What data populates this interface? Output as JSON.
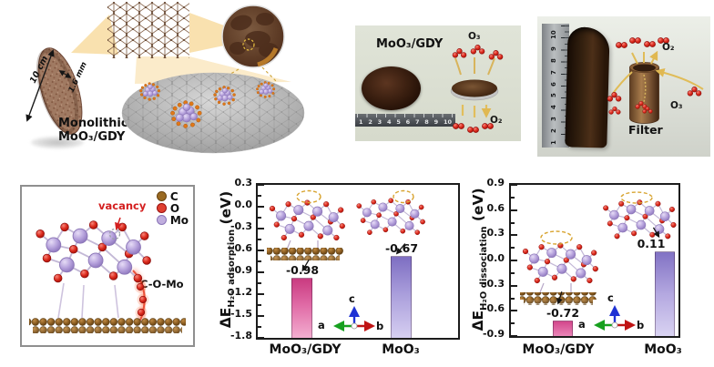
{
  "top_left": {
    "caption_line1": "Monolithic",
    "caption_line2": "MoO₃/GDY",
    "diameter_label": "10 cm",
    "thickness_label": "1.6 mm"
  },
  "top_middle": {
    "title": "MoO₃/GDY",
    "ozone_label": "O₃",
    "oxygen_label": "O₂",
    "ruler_numbers": [
      "1",
      "2",
      "3",
      "4",
      "5",
      "6",
      "7",
      "8",
      "9",
      "10"
    ]
  },
  "top_right": {
    "caption": "Filter",
    "oxygen_label": "O₂",
    "ozone_label": "O₃",
    "ruler_numbers": [
      "1",
      "2",
      "3",
      "4",
      "5",
      "6",
      "7",
      "8",
      "9",
      "10"
    ]
  },
  "bottom_left": {
    "vacancy_label": "vacancy",
    "bond_label": "C-O-Mo",
    "legend": [
      {
        "label": "C",
        "color": "#9a6a22",
        "ring": "#6a4410"
      },
      {
        "label": "O",
        "color": "#e04030",
        "ring": "#991010"
      },
      {
        "label": "Mo",
        "color": "#c0aede",
        "ring": "#8a74b8"
      }
    ]
  },
  "chart_data": [
    {
      "type": "bar",
      "ylabel": "ΔE_H₂O adsorption (eV)",
      "ylabel_parts": {
        "prefix": "ΔE",
        "sub": "H₂O adsorption",
        "unit": " (eV)"
      },
      "categories": [
        "MoO₃/GDY",
        "MoO₃"
      ],
      "values": [
        -0.98,
        -0.67
      ],
      "bar_labels": [
        "-0.98",
        "-0.67"
      ],
      "bar_colors": [
        "#d23b82",
        "#8b7cc8"
      ],
      "ylim": [
        -1.8,
        0.3
      ],
      "yticks": [
        0.3,
        0.0,
        -0.3,
        -0.6,
        -0.9,
        -1.2,
        -1.5,
        -1.8
      ],
      "grid": false,
      "legend_position": "none",
      "axes_triad": [
        "a",
        "b",
        "c"
      ]
    },
    {
      "type": "bar",
      "ylabel": "ΔE_H₂O dissociation (eV)",
      "ylabel_parts": {
        "prefix": "ΔE",
        "sub": "H₂O dissociation",
        "unit": " (eV)"
      },
      "categories": [
        "MoO₃/GDY",
        "MoO₃"
      ],
      "values": [
        -0.72,
        0.11
      ],
      "bar_labels": [
        "-0.72",
        "0.11"
      ],
      "bar_colors": [
        "#d23b82",
        "#8b7cc8"
      ],
      "ylim": [
        -0.9,
        0.9
      ],
      "yticks": [
        0.9,
        0.6,
        0.3,
        0.0,
        -0.3,
        -0.6,
        -0.9
      ],
      "grid": false,
      "legend_position": "none",
      "axes_triad": [
        "a",
        "b",
        "c"
      ]
    }
  ]
}
